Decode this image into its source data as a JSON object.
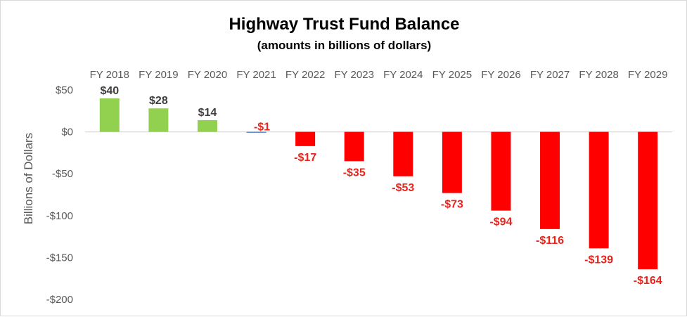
{
  "chart_data": {
    "type": "bar",
    "title": "Highway Trust Fund Balance",
    "subtitle": "(amounts in billions of dollars)",
    "xlabel": "",
    "ylabel": "Billions of Dollars",
    "categories": [
      "FY 2018",
      "FY 2019",
      "FY 2020",
      "FY 2021",
      "FY 2022",
      "FY 2023",
      "FY 2024",
      "FY 2025",
      "FY 2026",
      "FY 2027",
      "FY 2028",
      "FY 2029"
    ],
    "values": [
      40,
      28,
      14,
      -1,
      -17,
      -35,
      -53,
      -73,
      -94,
      -116,
      -139,
      -164
    ],
    "data_labels": [
      "$40",
      "$28",
      "$14",
      "-$1",
      "-$17",
      "-$35",
      "-$53",
      "-$73",
      "-$94",
      "-$116",
      "-$139",
      "-$164"
    ],
    "ylim": [
      -200,
      50
    ],
    "yticks": [
      50,
      0,
      -50,
      -100,
      -150,
      -200
    ],
    "ytick_labels": [
      "$50",
      "$0",
      "-$50",
      "-$100",
      "-$150",
      "-$200"
    ],
    "category_axis_position": "top",
    "grid": false,
    "legend": "none",
    "colors": {
      "positive_bar": "#92d050",
      "negative_bar": "#ff0000",
      "positive_label": "#404040",
      "negative_label": "#e8251c",
      "minus_one_bar": "#4472c4",
      "axis_line": "#d9d9d9"
    }
  }
}
